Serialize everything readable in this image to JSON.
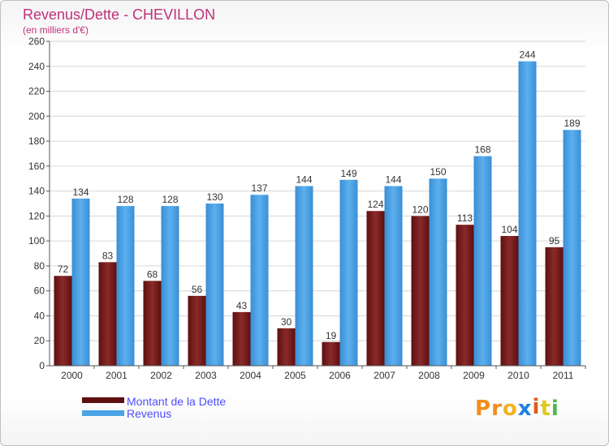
{
  "chart_data": {
    "type": "bar",
    "title": "Revenus/Dette - CHEVILLON",
    "subtitle": "(en milliers d'€)",
    "categories": [
      "2000",
      "2001",
      "2002",
      "2003",
      "2004",
      "2005",
      "2006",
      "2007",
      "2008",
      "2009",
      "2010",
      "2011"
    ],
    "series": [
      {
        "name": "Montant de la Dette",
        "color": "#7a1f1f",
        "values": [
          72,
          83,
          68,
          56,
          43,
          30,
          19,
          124,
          120,
          113,
          104,
          95
        ]
      },
      {
        "name": "Revenus",
        "color": "#4aa3e6",
        "values": [
          134,
          128,
          128,
          130,
          137,
          144,
          149,
          144,
          150,
          168,
          244,
          189
        ]
      }
    ],
    "ylim": [
      0,
      260
    ],
    "ytick_step": 20,
    "grid": true,
    "legend_position": "bottom-left",
    "data_labels": true
  },
  "logo": {
    "text": "Proxiti",
    "icon": "proxiti-logo"
  }
}
